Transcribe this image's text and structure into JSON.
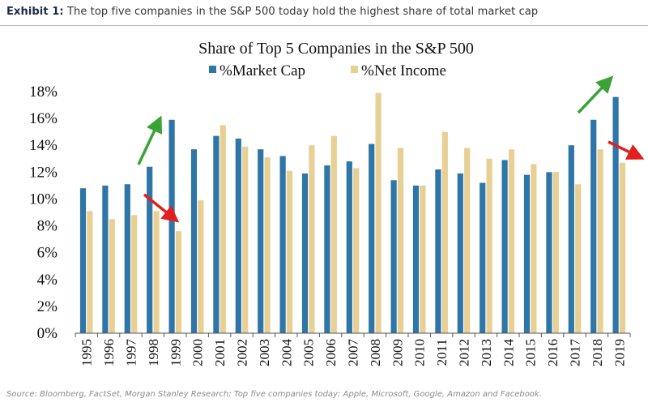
{
  "header": {
    "label": "Exhibit 1:",
    "text": "The top five companies in the S&P 500 today hold the highest share of total market cap"
  },
  "footer": {
    "source": "Source: Bloomberg, FactSet, Morgan Stanley Research; Top five companies today: Apple, Microsoft, Google, Amazon and Facebook."
  },
  "chart_data": {
    "type": "bar",
    "title": "Share of Top 5 Companies in the S&P 500",
    "categories": [
      "1995",
      "1996",
      "1997",
      "1998",
      "1999",
      "2000",
      "2001",
      "2002",
      "2003",
      "2004",
      "2005",
      "2006",
      "2007",
      "2008",
      "2009",
      "2010",
      "2011",
      "2012",
      "2013",
      "2014",
      "2015",
      "2016",
      "2017",
      "2018",
      "2019"
    ],
    "series": [
      {
        "name": "%Market Cap",
        "color": "#2e75a8",
        "values": [
          10.8,
          11.0,
          11.1,
          12.4,
          15.9,
          13.7,
          14.7,
          14.5,
          13.7,
          13.2,
          11.9,
          12.5,
          12.8,
          14.1,
          11.4,
          11.0,
          12.2,
          11.9,
          11.2,
          12.9,
          11.8,
          12.0,
          14.0,
          15.9,
          17.6
        ]
      },
      {
        "name": "%Net Income",
        "color": "#e8cf94",
        "values": [
          9.1,
          8.5,
          8.8,
          9.1,
          7.6,
          9.9,
          15.5,
          13.9,
          13.1,
          12.1,
          14.0,
          14.7,
          12.3,
          17.9,
          13.8,
          11.0,
          15.0,
          13.8,
          13.0,
          13.7,
          12.6,
          12.0,
          11.1,
          13.7,
          12.7
        ]
      }
    ],
    "y_ticks": [
      "0%",
      "2%",
      "4%",
      "6%",
      "8%",
      "10%",
      "12%",
      "14%",
      "16%",
      "18%"
    ],
    "ylim": [
      0,
      18
    ],
    "grid": false,
    "legend_position": "top-center",
    "annotations": [
      {
        "type": "arrow",
        "color": "#3aa335",
        "direction": "up",
        "near": "1998"
      },
      {
        "type": "arrow",
        "color": "#e02020",
        "direction": "down",
        "near": "1999"
      },
      {
        "type": "arrow",
        "color": "#3aa335",
        "direction": "up",
        "near": "2018"
      },
      {
        "type": "arrow",
        "color": "#e02020",
        "direction": "down",
        "near": "2019"
      }
    ]
  }
}
